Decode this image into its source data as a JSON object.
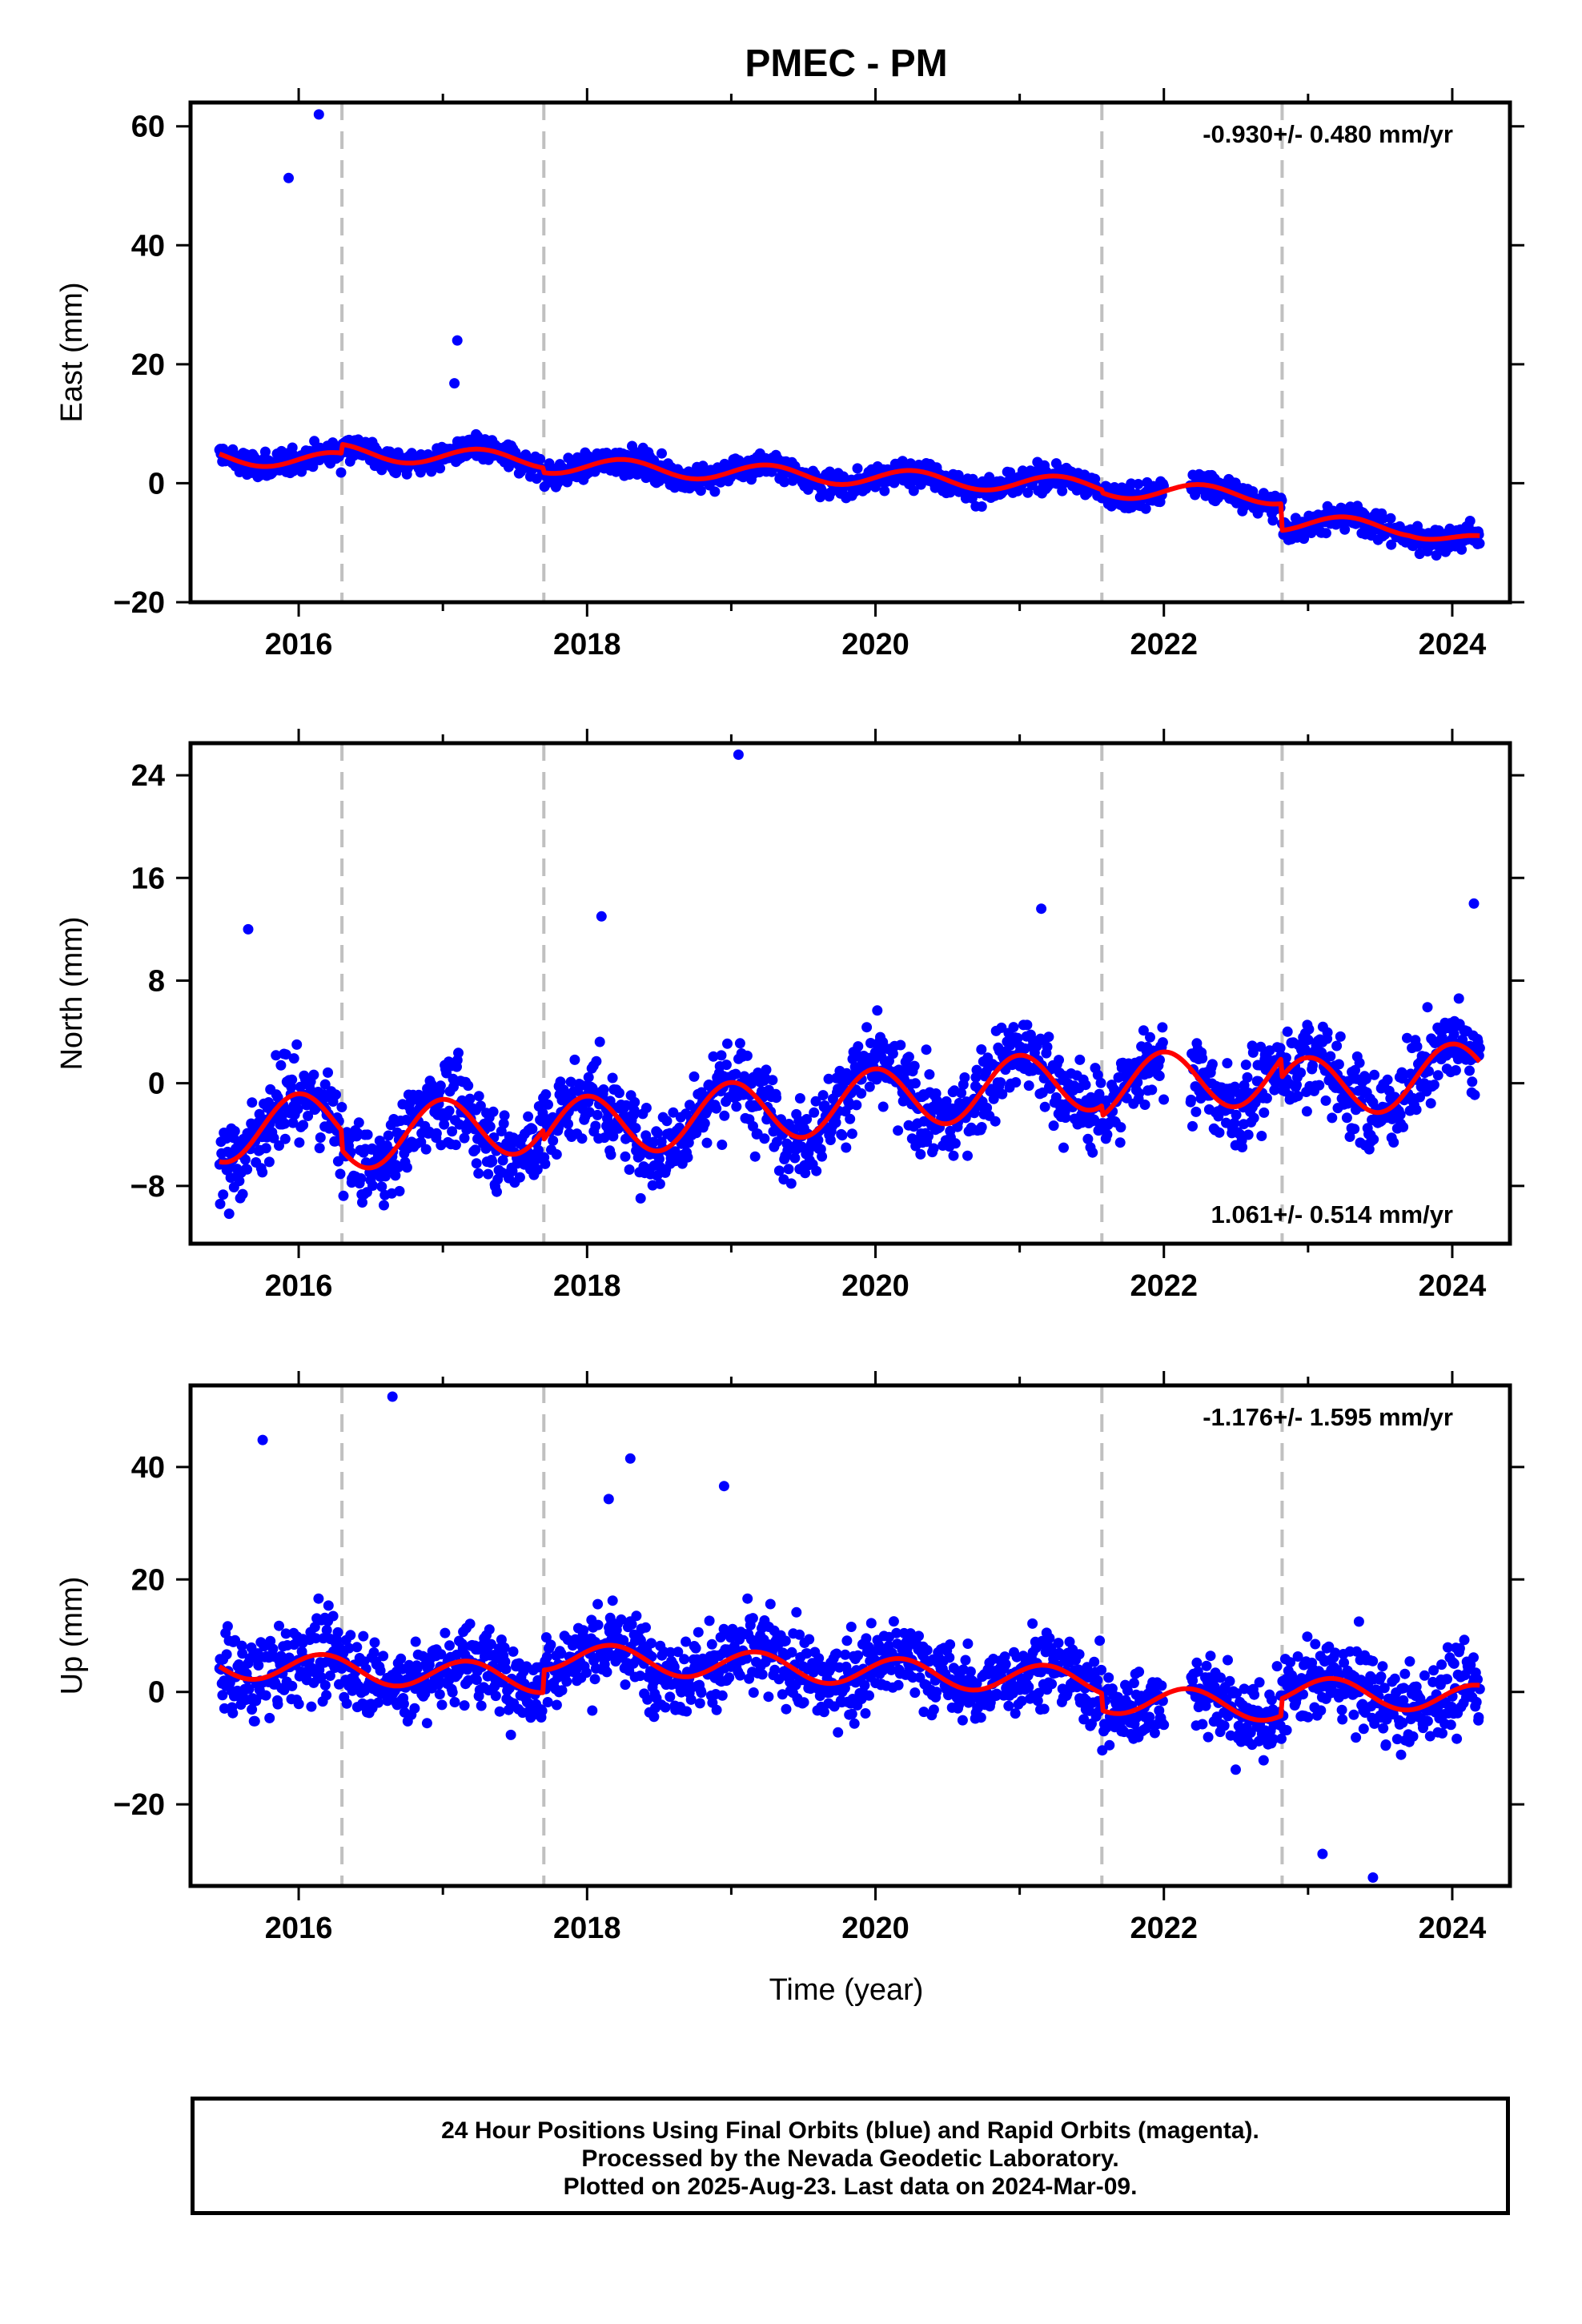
{
  "chart_data": {
    "type": "scatter",
    "title": "PMEC - PM",
    "xlabel": "Time (year)",
    "x_tick_labels": [
      "2016",
      "2018",
      "2020",
      "2022",
      "2024"
    ],
    "xlim": [
      2015.25,
      2024.4
    ],
    "equipment_change_epochs": [
      2016.3,
      2017.7,
      2021.57,
      2022.82
    ],
    "series_colors": {
      "data": "#0000ff",
      "model": "#ff0000",
      "event_lines": "#c0c0c0"
    },
    "panels": [
      {
        "id": "east",
        "ylabel": "East (mm)",
        "ylim": [
          -20,
          64
        ],
        "y_ticks": [
          -20,
          0,
          20,
          40,
          60
        ],
        "y_tick_labels": [
          "−20",
          "0",
          "20",
          "40",
          "60"
        ],
        "rate_text": "-0.930+/- 0.480 mm/yr",
        "rate_position": "top-right",
        "trend": {
          "a": 4.5,
          "b": -0.93,
          "amp": 1.4,
          "phase": 0.0,
          "scatter": 2.0
        },
        "offsets": [
          {
            "year": 2016.3,
            "delta": 1.5
          },
          {
            "year": 2017.7,
            "delta": -0.8
          },
          {
            "year": 2021.57,
            "delta": -0.5
          },
          {
            "year": 2022.82,
            "delta": -4.5
          }
        ],
        "decline_after": [
          2023.7,
          -4.5
        ],
        "outliers": [
          [
            2015.93,
            51.3
          ],
          [
            2016.14,
            62.0
          ],
          [
            2017.1,
            24.0
          ],
          [
            2017.08,
            16.8
          ]
        ],
        "gaps": [
          [
            2022.0,
            2022.18
          ]
        ]
      },
      {
        "id": "north",
        "ylabel": "North (mm)",
        "ylim": [
          -12.5,
          26.5
        ],
        "y_ticks": [
          -8,
          0,
          8,
          16,
          24
        ],
        "y_tick_labels": [
          "−8",
          "0",
          "8",
          "16",
          "24"
        ],
        "rate_text": "1.061+/- 0.514 mm/yr",
        "rate_position": "bottom-right",
        "trend": {
          "a": -3.8,
          "b": 1.06,
          "amp": 2.4,
          "phase": 1.6,
          "scatter": 3.0
        },
        "offsets": [
          {
            "year": 2016.3,
            "delta": -1.5
          },
          {
            "year": 2017.7,
            "delta": -0.8
          },
          {
            "year": 2021.57,
            "delta": -0.8
          },
          {
            "year": 2022.82,
            "delta": -1.5
          }
        ],
        "outliers": [
          [
            2019.05,
            25.6
          ],
          [
            2015.65,
            12.0
          ],
          [
            2021.15,
            13.6
          ],
          [
            2024.15,
            14.0
          ],
          [
            2018.1,
            13.0
          ]
        ],
        "gaps": [
          [
            2022.0,
            2022.18
          ]
        ]
      },
      {
        "id": "up",
        "ylabel": "Up (mm)",
        "ylim": [
          -34.5,
          54.5
        ],
        "y_ticks": [
          -20,
          0,
          20,
          40
        ],
        "y_tick_labels": [
          "−20",
          "0",
          "20",
          "40"
        ],
        "rate_text": "-1.176+/- 1.595 mm/yr",
        "rate_position": "top-right",
        "trend": {
          "a": 5.0,
          "b": -1.18,
          "amp": 2.5,
          "phase": 0.5,
          "scatter": 6.5
        },
        "offsets": [
          {
            "year": 2016.3,
            "delta": 0.0
          },
          {
            "year": 2017.7,
            "delta": 4.0
          },
          {
            "year": 2021.57,
            "delta": -3.0
          },
          {
            "year": 2022.82,
            "delta": 3.0
          }
        ],
        "outliers": [
          [
            2016.65,
            52.5
          ],
          [
            2015.75,
            44.8
          ],
          [
            2018.3,
            41.5
          ],
          [
            2018.95,
            36.6
          ],
          [
            2018.15,
            34.3
          ],
          [
            2023.45,
            -33.0
          ],
          [
            2023.1,
            -28.8
          ]
        ],
        "gaps": [
          [
            2022.0,
            2022.18
          ]
        ]
      }
    ]
  },
  "footer": {
    "line1": "24 Hour Positions Using Final Orbits (blue) and Rapid Orbits (magenta).",
    "line2": "Processed by the Nevada Geodetic Laboratory.",
    "line3": "Plotted on 2025-Aug-23. Last data on 2024-Mar-09."
  }
}
